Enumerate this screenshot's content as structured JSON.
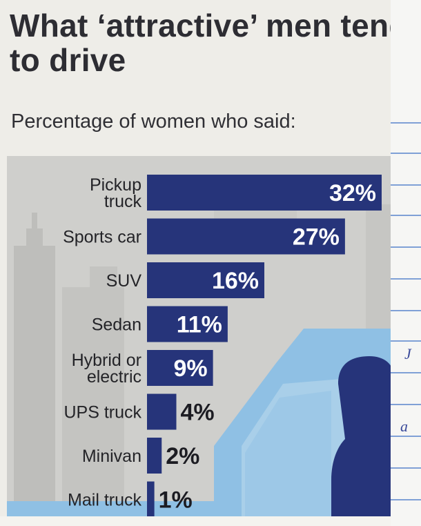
{
  "chart_data": {
    "type": "bar",
    "orientation": "horizontal",
    "title": "What ‘attractive’ men tend to drive",
    "subtitle": "Percentage of women who said:",
    "categories": [
      [
        "Pickup",
        "truck"
      ],
      [
        "Sports car"
      ],
      [
        "SUV"
      ],
      [
        "Sedan"
      ],
      [
        "Hybrid or",
        "electric"
      ],
      [
        "UPS truck"
      ],
      [
        "Minivan"
      ],
      [
        "Mail truck"
      ]
    ],
    "values": [
      32,
      27,
      16,
      11,
      9,
      4,
      2,
      1
    ],
    "value_labels": [
      "32%",
      "27%",
      "16%",
      "11%",
      "9%",
      "4%",
      "2%",
      "1%"
    ],
    "xlim": [
      0,
      32
    ],
    "colors": {
      "bar": "#26347a",
      "label_inside": "#ffffff",
      "label_outside": "#1c1c22",
      "panel": "#cfcfcc",
      "illustration": "#8fc0e4"
    }
  },
  "notebook": {
    "marks": [
      "J",
      "a"
    ]
  }
}
